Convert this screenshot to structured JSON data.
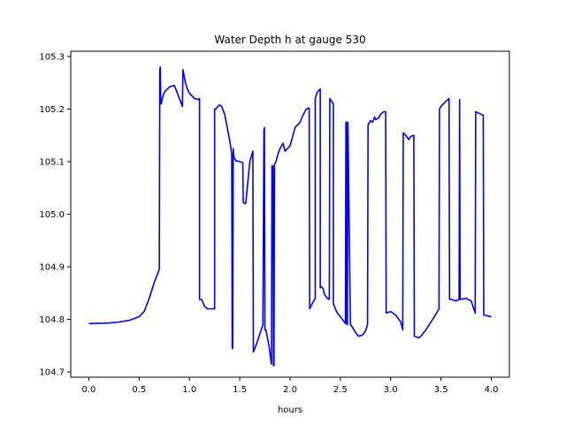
{
  "chart_data": {
    "type": "line",
    "title": "Water Depth h at gauge 530",
    "xlabel": "hours",
    "ylabel": "",
    "xlim": [
      -0.18,
      4.18
    ],
    "ylim": [
      104.69,
      105.31
    ],
    "xticks": [
      0.0,
      0.5,
      1.0,
      1.5,
      2.0,
      2.5,
      3.0,
      3.5,
      4.0
    ],
    "xtick_labels": [
      "0.0",
      "0.5",
      "1.0",
      "1.5",
      "2.0",
      "2.5",
      "3.0",
      "3.5",
      "4.0"
    ],
    "yticks": [
      104.7,
      104.8,
      104.9,
      105.0,
      105.1,
      105.2,
      105.3
    ],
    "ytick_labels": [
      "104.7",
      "104.8",
      "104.9",
      "105.0",
      "105.1",
      "105.2",
      "105.3"
    ],
    "grid": false,
    "legend": false,
    "series": [
      {
        "color": "#0000ff",
        "x": [
          0.0,
          0.2,
          0.3,
          0.4,
          0.5,
          0.55,
          0.6,
          0.65,
          0.7,
          0.705,
          0.71,
          0.715,
          0.72,
          0.725,
          0.73,
          0.75,
          0.8,
          0.85,
          0.9,
          0.93,
          0.935,
          0.94,
          0.96,
          0.98,
          1.0,
          1.05,
          1.09,
          1.1,
          1.1,
          1.12,
          1.15,
          1.18,
          1.25,
          1.25,
          1.26,
          1.3,
          1.32,
          1.35,
          1.38,
          1.4,
          1.42,
          1.425,
          1.43,
          1.435,
          1.44,
          1.46,
          1.5,
          1.53,
          1.535,
          1.555,
          1.56,
          1.6,
          1.63,
          1.635,
          1.67,
          1.73,
          1.74,
          1.745,
          1.75,
          1.76,
          1.79,
          1.81,
          1.815,
          1.82,
          1.83,
          1.835,
          1.84,
          1.845,
          1.86,
          1.88,
          1.9,
          1.93,
          1.95,
          2.0,
          2.05,
          2.1,
          2.12,
          2.16,
          2.19,
          2.195,
          2.22,
          2.25,
          2.25,
          2.27,
          2.3,
          2.3,
          2.31,
          2.33,
          2.34,
          2.37,
          2.39,
          2.395,
          2.43,
          2.43,
          2.45,
          2.47,
          2.52,
          2.55,
          2.555,
          2.56,
          2.565,
          2.57,
          2.575,
          2.6,
          2.62,
          2.65,
          2.68,
          2.72,
          2.75,
          2.77,
          2.775,
          2.8,
          2.82,
          2.84,
          2.85,
          2.88,
          2.9,
          2.93,
          2.95,
          2.955,
          3.0,
          3.05,
          3.1,
          3.12,
          3.125,
          3.15,
          3.18,
          3.2,
          3.23,
          3.235,
          3.28,
          3.3,
          3.35,
          3.4,
          3.45,
          3.48,
          3.485,
          3.5,
          3.55,
          3.58,
          3.585,
          3.6,
          3.65,
          3.68,
          3.685,
          3.69,
          3.75,
          3.8,
          3.83,
          3.84,
          3.845,
          3.9,
          3.92,
          3.925,
          3.93,
          4.0
        ],
        "y": [
          104.792,
          104.793,
          104.795,
          104.798,
          104.805,
          104.815,
          104.84,
          104.87,
          104.895,
          105.275,
          105.28,
          105.21,
          105.21,
          105.215,
          105.22,
          105.232,
          105.242,
          105.245,
          105.22,
          105.205,
          105.275,
          105.27,
          105.25,
          105.238,
          105.23,
          105.22,
          105.218,
          105.22,
          104.838,
          104.838,
          104.825,
          104.82,
          104.82,
          105.2,
          105.2,
          105.208,
          105.205,
          105.19,
          105.16,
          105.14,
          105.115,
          104.745,
          104.745,
          105.125,
          105.11,
          105.102,
          105.1,
          105.098,
          105.022,
          105.02,
          105.022,
          105.1,
          105.12,
          104.738,
          104.755,
          104.79,
          105.16,
          105.165,
          104.78,
          104.78,
          104.75,
          104.72,
          104.715,
          105.092,
          105.092,
          104.712,
          104.712,
          105.095,
          105.1,
          105.115,
          105.125,
          105.135,
          105.12,
          105.13,
          105.165,
          105.175,
          105.185,
          105.2,
          105.202,
          104.82,
          104.83,
          104.84,
          105.22,
          105.232,
          105.238,
          104.86,
          104.862,
          104.858,
          104.848,
          104.84,
          104.838,
          105.22,
          105.21,
          104.83,
          104.82,
          104.812,
          104.8,
          104.792,
          105.175,
          105.175,
          104.79,
          104.79,
          105.175,
          104.79,
          104.785,
          104.775,
          104.768,
          104.77,
          104.778,
          104.79,
          105.17,
          105.178,
          105.175,
          105.185,
          105.18,
          105.183,
          105.19,
          105.195,
          105.195,
          104.812,
          104.815,
          104.808,
          104.795,
          104.78,
          105.155,
          105.15,
          105.142,
          105.148,
          105.15,
          104.768,
          104.765,
          104.768,
          104.78,
          104.795,
          104.81,
          104.82,
          105.2,
          105.205,
          105.215,
          105.22,
          104.838,
          104.838,
          104.835,
          104.838,
          105.218,
          104.838,
          104.84,
          104.835,
          104.818,
          104.812,
          105.195,
          105.19,
          105.188,
          104.808,
          104.808,
          104.805
        ]
      }
    ]
  }
}
